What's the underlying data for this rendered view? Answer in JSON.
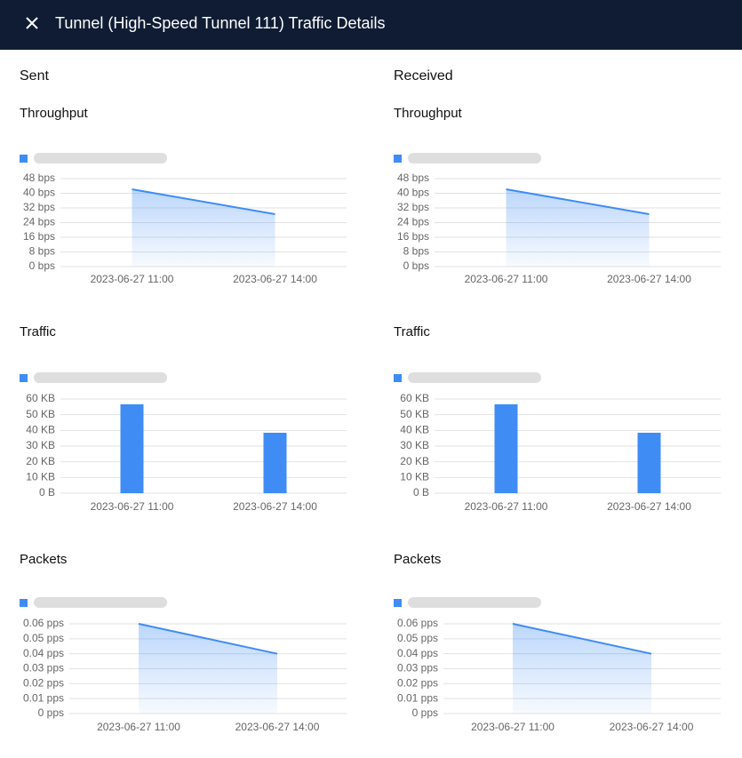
{
  "header": {
    "title": "Tunnel (High-Speed Tunnel 111) Traffic Details"
  },
  "panels": [
    {
      "heading": "Sent",
      "charts": [
        {
          "title": "Throughput",
          "type": "area",
          "color": "#3f8cf5",
          "categories": [
            "2023-06-27 11:00",
            "2023-06-27 14:00"
          ],
          "values": [
            42.2,
            28.6
          ],
          "ylim": [
            0,
            48
          ],
          "yticks": [
            {
              "value": 0,
              "label": "0 bps"
            },
            {
              "value": 8,
              "label": "8 bps"
            },
            {
              "value": 16,
              "label": "16 bps"
            },
            {
              "value": 24,
              "label": "24 bps"
            },
            {
              "value": 32,
              "label": "32 bps"
            },
            {
              "value": 40,
              "label": "40 bps"
            },
            {
              "value": 48,
              "label": "48 bps"
            }
          ],
          "grid": true
        },
        {
          "title": "Traffic",
          "type": "bar",
          "color": "#3f8cf5",
          "categories": [
            "2023-06-27 11:00",
            "2023-06-27 14:00"
          ],
          "values": [
            56.6,
            38.5
          ],
          "ylim": [
            0,
            60
          ],
          "yticks": [
            {
              "value": 0,
              "label": "0 B"
            },
            {
              "value": 10,
              "label": "10 KB"
            },
            {
              "value": 20,
              "label": "20 KB"
            },
            {
              "value": 30,
              "label": "30 KB"
            },
            {
              "value": 40,
              "label": "40 KB"
            },
            {
              "value": 50,
              "label": "50 KB"
            },
            {
              "value": 60,
              "label": "60 KB"
            }
          ],
          "grid": true
        },
        {
          "title": "Packets",
          "type": "area",
          "color": "#3f8cf5",
          "categories": [
            "2023-06-27 11:00",
            "2023-06-27 14:00"
          ],
          "values": [
            0.06,
            0.04
          ],
          "ylim": [
            0,
            0.06
          ],
          "yticks": [
            {
              "value": 0,
              "label": "0 pps"
            },
            {
              "value": 0.01,
              "label": "0.01 pps"
            },
            {
              "value": 0.02,
              "label": "0.02 pps"
            },
            {
              "value": 0.03,
              "label": "0.03 pps"
            },
            {
              "value": 0.04,
              "label": "0.04 pps"
            },
            {
              "value": 0.05,
              "label": "0.05 pps"
            },
            {
              "value": 0.06,
              "label": "0.06 pps"
            }
          ],
          "grid": true
        }
      ]
    },
    {
      "heading": "Received",
      "charts": [
        {
          "title": "Throughput",
          "type": "area",
          "color": "#3f8cf5",
          "categories": [
            "2023-06-27 11:00",
            "2023-06-27 14:00"
          ],
          "values": [
            42.2,
            28.6
          ],
          "ylim": [
            0,
            48
          ],
          "yticks": [
            {
              "value": 0,
              "label": "0 bps"
            },
            {
              "value": 8,
              "label": "8 bps"
            },
            {
              "value": 16,
              "label": "16 bps"
            },
            {
              "value": 24,
              "label": "24 bps"
            },
            {
              "value": 32,
              "label": "32 bps"
            },
            {
              "value": 40,
              "label": "40 bps"
            },
            {
              "value": 48,
              "label": "48 bps"
            }
          ],
          "grid": true
        },
        {
          "title": "Traffic",
          "type": "bar",
          "color": "#3f8cf5",
          "categories": [
            "2023-06-27 11:00",
            "2023-06-27 14:00"
          ],
          "values": [
            56.6,
            38.5
          ],
          "ylim": [
            0,
            60
          ],
          "yticks": [
            {
              "value": 0,
              "label": "0 B"
            },
            {
              "value": 10,
              "label": "10 KB"
            },
            {
              "value": 20,
              "label": "20 KB"
            },
            {
              "value": 30,
              "label": "30 KB"
            },
            {
              "value": 40,
              "label": "40 KB"
            },
            {
              "value": 50,
              "label": "50 KB"
            },
            {
              "value": 60,
              "label": "60 KB"
            }
          ],
          "grid": true
        },
        {
          "title": "Packets",
          "type": "area",
          "color": "#3f8cf5",
          "categories": [
            "2023-06-27 11:00",
            "2023-06-27 14:00"
          ],
          "values": [
            0.06,
            0.04
          ],
          "ylim": [
            0,
            0.06
          ],
          "yticks": [
            {
              "value": 0,
              "label": "0 pps"
            },
            {
              "value": 0.01,
              "label": "0.01 pps"
            },
            {
              "value": 0.02,
              "label": "0.02 pps"
            },
            {
              "value": 0.03,
              "label": "0.03 pps"
            },
            {
              "value": 0.04,
              "label": "0.04 pps"
            },
            {
              "value": 0.05,
              "label": "0.05 pps"
            },
            {
              "value": 0.06,
              "label": "0.06 pps"
            }
          ],
          "grid": true
        }
      ]
    }
  ]
}
